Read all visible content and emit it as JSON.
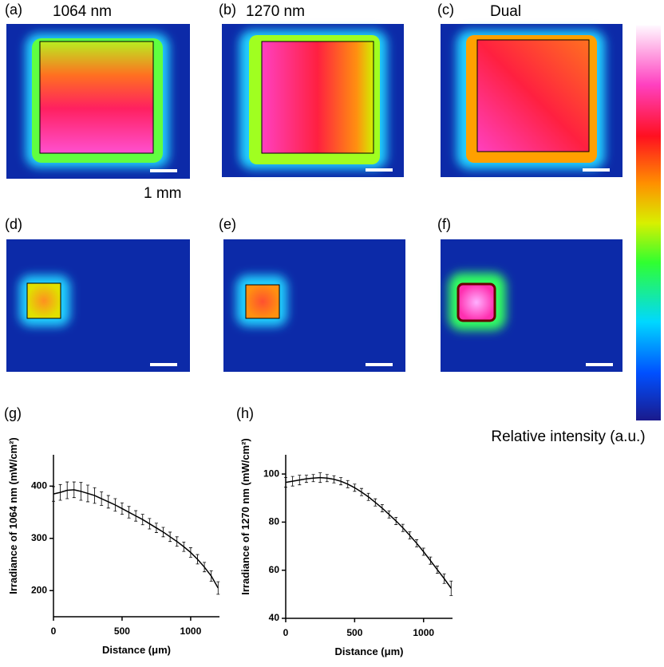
{
  "panels": [
    {
      "label": "(a)",
      "title": "1064 nm"
    },
    {
      "label": "(b)",
      "title": "1270 nm"
    },
    {
      "label": "(c)",
      "title": "Dual"
    },
    {
      "label": "(d)"
    },
    {
      "label": "(e)"
    },
    {
      "label": "(f)"
    }
  ],
  "scale_bar_label": "1 mm",
  "colorbar_label": "Relative intensity (a.u.)",
  "chart_data": [
    {
      "type": "line",
      "panel_label": "(g)",
      "x_label": "Distance (μm)",
      "y_label": "Irradiance of 1064 nm (mW/cm²)",
      "x": [
        0,
        50,
        100,
        150,
        200,
        250,
        300,
        350,
        400,
        450,
        500,
        550,
        600,
        650,
        700,
        750,
        800,
        850,
        900,
        950,
        1000,
        1050,
        1100,
        1150,
        1200
      ],
      "series": [
        {
          "color": "#000000",
          "values": [
            385,
            388,
            392,
            393,
            390,
            386,
            382,
            376,
            370,
            364,
            357,
            350,
            343,
            336,
            328,
            320,
            312,
            303,
            294,
            284,
            273,
            260,
            245,
            228,
            205
          ],
          "errors": [
            14,
            15,
            16,
            15,
            17,
            16,
            15,
            13,
            12,
            12,
            11,
            11,
            10,
            10,
            10,
            9,
            9,
            9,
            9,
            9,
            9,
            9,
            9,
            10,
            12
          ]
        }
      ],
      "xlim": [
        0,
        1210
      ],
      "ylim": [
        150,
        460
      ],
      "xticks": [
        0,
        500,
        1000
      ],
      "yticks": [
        200,
        300,
        400
      ]
    },
    {
      "type": "line",
      "panel_label": "(h)",
      "x_label": "Distance (μm)",
      "y_label": "Irradiance of 1270 nm (mW/cm²)",
      "x": [
        0,
        50,
        100,
        150,
        200,
        250,
        300,
        350,
        400,
        450,
        500,
        550,
        600,
        650,
        700,
        750,
        800,
        850,
        900,
        950,
        1000,
        1050,
        1100,
        1150,
        1200
      ],
      "series": [
        {
          "color": "#000000",
          "values": [
            96.5,
            97,
            97.5,
            98,
            98.3,
            98.5,
            98.3,
            97.8,
            97,
            95.8,
            94.3,
            92.5,
            90.5,
            88.2,
            85.8,
            83.2,
            80.5,
            77.6,
            74.5,
            71.2,
            67.7,
            64,
            60.2,
            56.5,
            52.5
          ],
          "errors": [
            2,
            2,
            2,
            1.5,
            1.5,
            2,
            1.5,
            1.5,
            1.5,
            1.5,
            1.5,
            1.5,
            1.5,
            1.5,
            1.5,
            1.5,
            1.5,
            1.5,
            1.5,
            1.5,
            1.5,
            1.5,
            1.5,
            2,
            3
          ]
        }
      ],
      "xlim": [
        0,
        1210
      ],
      "ylim": [
        40,
        108
      ],
      "xticks": [
        0,
        500,
        1000
      ],
      "yticks": [
        40,
        60,
        80,
        100
      ]
    }
  ]
}
